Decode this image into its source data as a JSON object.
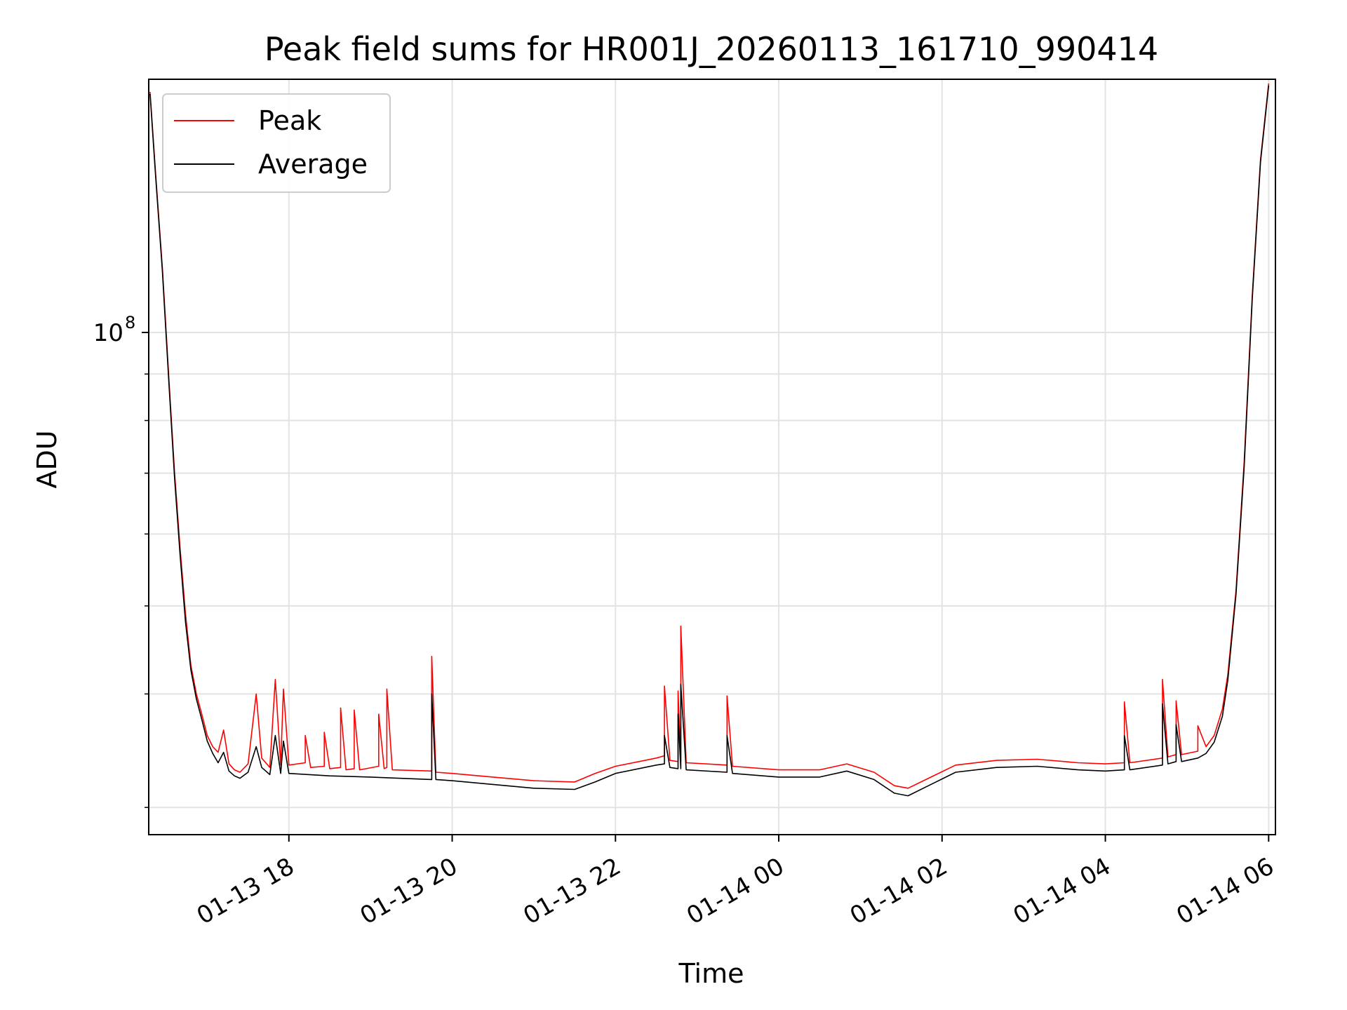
{
  "chart_data": {
    "type": "line",
    "title": "Peak field sums for HR001J_20260113_161710_990414",
    "xlabel": "Time",
    "ylabel": "ADU",
    "y_scale": "log",
    "grid": true,
    "legend_position": "top-left",
    "xlim": [
      "2026-01-13 16:17",
      "2026-01-14 06:05"
    ],
    "ylim": [
      28000000,
      190000000
    ],
    "x_ticks": [
      {
        "value": "2026-01-13 18:00",
        "label": "01-13 18"
      },
      {
        "value": "2026-01-13 20:00",
        "label": "01-13 20"
      },
      {
        "value": "2026-01-13 22:00",
        "label": "01-13 22"
      },
      {
        "value": "2026-01-14 00:00",
        "label": "01-14 00"
      },
      {
        "value": "2026-01-14 02:00",
        "label": "01-14 02"
      },
      {
        "value": "2026-01-14 04:00",
        "label": "01-14 04"
      },
      {
        "value": "2026-01-14 06:00",
        "label": "01-14 06"
      }
    ],
    "y_ticks": [
      {
        "value": 100000000,
        "label_base": "10",
        "label_exp": "8"
      }
    ],
    "series": [
      {
        "name": "Peak",
        "color": "#ff0000",
        "points": [
          [
            "2026-01-13 16:18",
            184000000
          ],
          [
            "2026-01-13 16:22",
            150000000
          ],
          [
            "2026-01-13 16:27",
            118000000
          ],
          [
            "2026-01-13 16:32",
            88000000
          ],
          [
            "2026-01-13 16:36",
            70000000
          ],
          [
            "2026-01-13 16:40",
            58000000
          ],
          [
            "2026-01-13 16:44",
            49000000
          ],
          [
            "2026-01-13 16:48",
            43000000
          ],
          [
            "2026-01-13 16:52",
            40000000
          ],
          [
            "2026-01-13 16:56",
            38000000
          ],
          [
            "2026-01-13 17:00",
            36000000
          ],
          [
            "2026-01-13 17:04",
            35000000
          ],
          [
            "2026-01-13 17:08",
            34500000
          ],
          [
            "2026-01-13 17:12",
            36500000
          ],
          [
            "2026-01-13 17:16",
            33500000
          ],
          [
            "2026-01-13 17:20",
            33000000
          ],
          [
            "2026-01-13 17:24",
            32800000
          ],
          [
            "2026-01-13 17:30",
            33500000
          ],
          [
            "2026-01-13 17:36",
            40000000
          ],
          [
            "2026-01-13 17:40",
            34000000
          ],
          [
            "2026-01-13 17:46",
            33200000
          ],
          [
            "2026-01-13 17:50",
            41500000
          ],
          [
            "2026-01-13 17:54",
            33400000
          ],
          [
            "2026-01-13 17:56",
            40500000
          ],
          [
            "2026-01-13 18:00",
            33400000
          ],
          [
            "2026-01-13 18:12",
            33600000
          ],
          [
            "2026-01-13 18:12",
            36000000
          ],
          [
            "2026-01-13 18:16",
            33200000
          ],
          [
            "2026-01-13 18:26",
            33300000
          ],
          [
            "2026-01-13 18:26",
            36300000
          ],
          [
            "2026-01-13 18:30",
            33100000
          ],
          [
            "2026-01-13 18:38",
            33200000
          ],
          [
            "2026-01-13 18:38",
            38600000
          ],
          [
            "2026-01-13 18:42",
            33000000
          ],
          [
            "2026-01-13 18:48",
            33100000
          ],
          [
            "2026-01-13 18:48",
            38400000
          ],
          [
            "2026-01-13 18:52",
            33000000
          ],
          [
            "2026-01-13 19:06",
            33300000
          ],
          [
            "2026-01-13 19:06",
            38000000
          ],
          [
            "2026-01-13 19:10",
            33100000
          ],
          [
            "2026-01-13 19:12",
            33200000
          ],
          [
            "2026-01-13 19:12",
            40500000
          ],
          [
            "2026-01-13 19:16",
            33000000
          ],
          [
            "2026-01-13 19:45",
            32900000
          ],
          [
            "2026-01-13 19:45",
            44000000
          ],
          [
            "2026-01-13 19:48",
            32800000
          ],
          [
            "2026-01-13 20:00",
            32700000
          ],
          [
            "2026-01-13 20:30",
            32400000
          ],
          [
            "2026-01-13 21:00",
            32100000
          ],
          [
            "2026-01-13 21:30",
            32000000
          ],
          [
            "2026-01-13 21:45",
            32700000
          ],
          [
            "2026-01-13 22:00",
            33300000
          ],
          [
            "2026-01-13 22:30",
            34000000
          ],
          [
            "2026-01-13 22:36",
            34200000
          ],
          [
            "2026-01-13 22:36",
            40800000
          ],
          [
            "2026-01-13 22:40",
            33800000
          ],
          [
            "2026-01-13 22:46",
            33700000
          ],
          [
            "2026-01-13 22:46",
            40300000
          ],
          [
            "2026-01-13 22:48",
            33700000
          ],
          [
            "2026-01-13 22:48",
            47500000
          ],
          [
            "2026-01-13 22:52",
            33600000
          ],
          [
            "2026-01-13 23:22",
            33400000
          ],
          [
            "2026-01-13 23:22",
            39800000
          ],
          [
            "2026-01-13 23:26",
            33300000
          ],
          [
            "2026-01-14 00:00",
            33000000
          ],
          [
            "2026-01-14 00:30",
            33000000
          ],
          [
            "2026-01-14 00:50",
            33500000
          ],
          [
            "2026-01-14 01:10",
            32800000
          ],
          [
            "2026-01-14 01:25",
            31700000
          ],
          [
            "2026-01-14 01:35",
            31500000
          ],
          [
            "2026-01-14 01:50",
            32300000
          ],
          [
            "2026-01-14 02:10",
            33400000
          ],
          [
            "2026-01-14 02:40",
            33800000
          ],
          [
            "2026-01-14 03:10",
            33900000
          ],
          [
            "2026-01-14 03:40",
            33600000
          ],
          [
            "2026-01-14 04:00",
            33500000
          ],
          [
            "2026-01-14 04:14",
            33600000
          ],
          [
            "2026-01-14 04:14",
            39200000
          ],
          [
            "2026-01-14 04:18",
            33600000
          ],
          [
            "2026-01-14 04:42",
            34000000
          ],
          [
            "2026-01-14 04:42",
            41500000
          ],
          [
            "2026-01-14 04:46",
            34100000
          ],
          [
            "2026-01-14 04:52",
            34300000
          ],
          [
            "2026-01-14 04:52",
            39300000
          ],
          [
            "2026-01-14 04:56",
            34300000
          ],
          [
            "2026-01-14 05:08",
            34600000
          ],
          [
            "2026-01-14 05:08",
            36900000
          ],
          [
            "2026-01-14 05:14",
            35000000
          ],
          [
            "2026-01-14 05:20",
            36000000
          ],
          [
            "2026-01-14 05:26",
            38500000
          ],
          [
            "2026-01-14 05:30",
            42000000
          ],
          [
            "2026-01-14 05:36",
            52000000
          ],
          [
            "2026-01-14 05:42",
            72000000
          ],
          [
            "2026-01-14 05:48",
            110000000
          ],
          [
            "2026-01-14 05:54",
            155000000
          ],
          [
            "2026-01-14 06:00",
            188000000
          ]
        ]
      },
      {
        "name": "Average",
        "color": "#000000",
        "points": [
          [
            "2026-01-13 16:18",
            183000000
          ],
          [
            "2026-01-13 16:22",
            149000000
          ],
          [
            "2026-01-13 16:27",
            117000000
          ],
          [
            "2026-01-13 16:32",
            87000000
          ],
          [
            "2026-01-13 16:36",
            69000000
          ],
          [
            "2026-01-13 16:40",
            57000000
          ],
          [
            "2026-01-13 16:44",
            48000000
          ],
          [
            "2026-01-13 16:48",
            42500000
          ],
          [
            "2026-01-13 16:52",
            39500000
          ],
          [
            "2026-01-13 16:56",
            37500000
          ],
          [
            "2026-01-13 17:00",
            35500000
          ],
          [
            "2026-01-13 17:04",
            34400000
          ],
          [
            "2026-01-13 17:08",
            33600000
          ],
          [
            "2026-01-13 17:12",
            34500000
          ],
          [
            "2026-01-13 17:16",
            32900000
          ],
          [
            "2026-01-13 17:20",
            32500000
          ],
          [
            "2026-01-13 17:24",
            32300000
          ],
          [
            "2026-01-13 17:30",
            32800000
          ],
          [
            "2026-01-13 17:36",
            35000000
          ],
          [
            "2026-01-13 17:40",
            33200000
          ],
          [
            "2026-01-13 17:46",
            32600000
          ],
          [
            "2026-01-13 17:50",
            36000000
          ],
          [
            "2026-01-13 17:54",
            32700000
          ],
          [
            "2026-01-13 17:56",
            35500000
          ],
          [
            "2026-01-13 18:00",
            32700000
          ],
          [
            "2026-01-13 18:30",
            32500000
          ],
          [
            "2026-01-13 19:00",
            32400000
          ],
          [
            "2026-01-13 19:45",
            32200000
          ],
          [
            "2026-01-13 19:45",
            40000000
          ],
          [
            "2026-01-13 19:48",
            32200000
          ],
          [
            "2026-01-13 20:00",
            32100000
          ],
          [
            "2026-01-13 20:30",
            31800000
          ],
          [
            "2026-01-13 21:00",
            31500000
          ],
          [
            "2026-01-13 21:30",
            31400000
          ],
          [
            "2026-01-13 21:45",
            32000000
          ],
          [
            "2026-01-13 22:00",
            32700000
          ],
          [
            "2026-01-13 22:30",
            33400000
          ],
          [
            "2026-01-13 22:36",
            33500000
          ],
          [
            "2026-01-13 22:36",
            36000000
          ],
          [
            "2026-01-13 22:40",
            33200000
          ],
          [
            "2026-01-13 22:46",
            33100000
          ],
          [
            "2026-01-13 22:46",
            38000000
          ],
          [
            "2026-01-13 22:48",
            33100000
          ],
          [
            "2026-01-13 22:48",
            41000000
          ],
          [
            "2026-01-13 22:52",
            33000000
          ],
          [
            "2026-01-13 23:22",
            32800000
          ],
          [
            "2026-01-13 23:22",
            36000000
          ],
          [
            "2026-01-13 23:26",
            32700000
          ],
          [
            "2026-01-14 00:00",
            32400000
          ],
          [
            "2026-01-14 00:30",
            32400000
          ],
          [
            "2026-01-14 00:50",
            32900000
          ],
          [
            "2026-01-14 01:10",
            32200000
          ],
          [
            "2026-01-14 01:25",
            31100000
          ],
          [
            "2026-01-14 01:35",
            30900000
          ],
          [
            "2026-01-14 01:50",
            31700000
          ],
          [
            "2026-01-14 02:10",
            32800000
          ],
          [
            "2026-01-14 02:40",
            33200000
          ],
          [
            "2026-01-14 03:10",
            33300000
          ],
          [
            "2026-01-14 03:40",
            33000000
          ],
          [
            "2026-01-14 04:00",
            32900000
          ],
          [
            "2026-01-14 04:14",
            33000000
          ],
          [
            "2026-01-14 04:14",
            36000000
          ],
          [
            "2026-01-14 04:18",
            33000000
          ],
          [
            "2026-01-14 04:42",
            33400000
          ],
          [
            "2026-01-14 04:42",
            39000000
          ],
          [
            "2026-01-14 04:46",
            33500000
          ],
          [
            "2026-01-14 04:52",
            33700000
          ],
          [
            "2026-01-14 04:52",
            37000000
          ],
          [
            "2026-01-14 04:56",
            33700000
          ],
          [
            "2026-01-14 05:08",
            34000000
          ],
          [
            "2026-01-14 05:14",
            34400000
          ],
          [
            "2026-01-14 05:20",
            35400000
          ],
          [
            "2026-01-14 05:26",
            37800000
          ],
          [
            "2026-01-14 05:30",
            41400000
          ],
          [
            "2026-01-14 05:36",
            51500000
          ],
          [
            "2026-01-14 05:42",
            71000000
          ],
          [
            "2026-01-14 05:48",
            109000000
          ],
          [
            "2026-01-14 05:54",
            154000000
          ],
          [
            "2026-01-14 06:00",
            187000000
          ]
        ]
      }
    ]
  }
}
